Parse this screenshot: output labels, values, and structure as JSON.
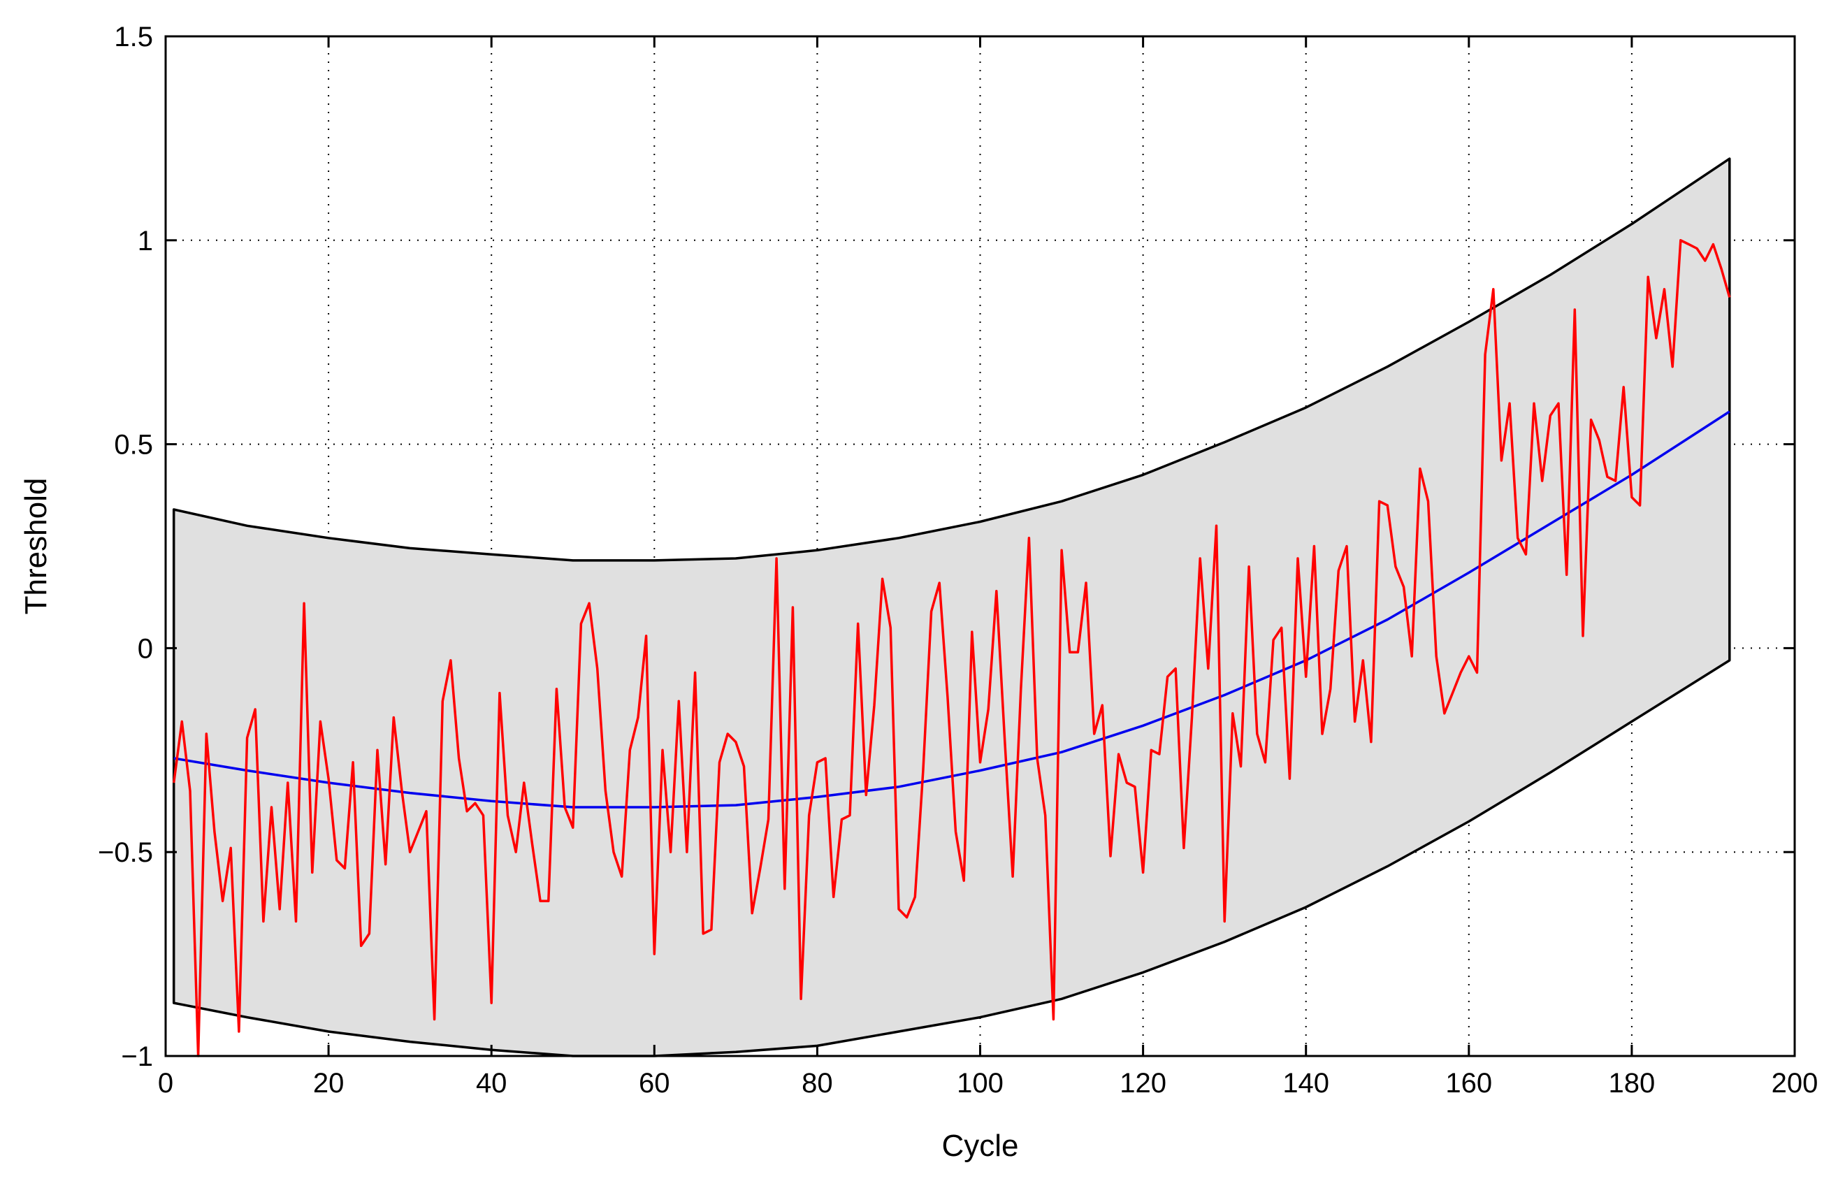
{
  "chart_data": {
    "type": "line",
    "xlabel": "Cycle",
    "ylabel": "Threshold",
    "xlim": [
      0,
      200
    ],
    "ylim": [
      -1,
      1.5
    ],
    "xticks": [
      0,
      20,
      40,
      60,
      80,
      100,
      120,
      140,
      160,
      180,
      200
    ],
    "yticks": [
      -1,
      -0.5,
      0,
      0.5,
      1,
      1.5
    ],
    "xtick_labels": [
      "0",
      "20",
      "40",
      "60",
      "80",
      "100",
      "120",
      "140",
      "160",
      "180",
      "200"
    ],
    "ytick_labels": [
      "−1",
      "−0.5",
      "0",
      "0.5",
      "1",
      "1.5"
    ],
    "grid": true,
    "grid_style": "dotted",
    "colors": {
      "band_fill": "#e0e0e0",
      "band_edge": "#000000",
      "fit": "#0000ee",
      "observed": "#ff0000"
    },
    "band": {
      "x": [
        1,
        10,
        20,
        30,
        40,
        50,
        60,
        70,
        80,
        90,
        100,
        110,
        120,
        130,
        140,
        150,
        160,
        170,
        180,
        192
      ],
      "upper": [
        0.34,
        0.3,
        0.27,
        0.245,
        0.23,
        0.215,
        0.215,
        0.22,
        0.24,
        0.27,
        0.31,
        0.36,
        0.425,
        0.505,
        0.59,
        0.69,
        0.8,
        0.915,
        1.04,
        1.2
      ],
      "lower": [
        -0.87,
        -0.905,
        -0.94,
        -0.965,
        -0.985,
        -1.0,
        -1.0,
        -0.99,
        -0.975,
        -0.94,
        -0.905,
        -0.86,
        -0.795,
        -0.72,
        -0.635,
        -0.535,
        -0.425,
        -0.305,
        -0.18,
        -0.03
      ]
    },
    "fit": {
      "x": [
        1,
        10,
        20,
        30,
        40,
        50,
        60,
        70,
        80,
        90,
        100,
        110,
        120,
        130,
        140,
        150,
        160,
        170,
        180,
        192
      ],
      "y": [
        -0.27,
        -0.3,
        -0.33,
        -0.355,
        -0.375,
        -0.39,
        -0.39,
        -0.385,
        -0.365,
        -0.34,
        -0.3,
        -0.255,
        -0.19,
        -0.115,
        -0.03,
        0.07,
        0.185,
        0.305,
        0.425,
        0.58
      ]
    },
    "series": [
      {
        "x": [
          1,
          2,
          3,
          4,
          5,
          6,
          7,
          8,
          9,
          10,
          11,
          12,
          13,
          14,
          15,
          16,
          17,
          18,
          19,
          20,
          21,
          22,
          23,
          24,
          25,
          26,
          27,
          28,
          29,
          30,
          31,
          32,
          33,
          34,
          35,
          36,
          37,
          38,
          39,
          40,
          41,
          42,
          43,
          44,
          45,
          46,
          47,
          48,
          49,
          50,
          51,
          52,
          53,
          54,
          55,
          56,
          57,
          58,
          59,
          60,
          61,
          62,
          63,
          64,
          65,
          66,
          67,
          68,
          69,
          70,
          71,
          72,
          73,
          74,
          75,
          76,
          77,
          78,
          79,
          80,
          81,
          82,
          83,
          84,
          85,
          86,
          87,
          88,
          89,
          90,
          91,
          92,
          93,
          94,
          95,
          96,
          97,
          98,
          99,
          100,
          101,
          102,
          103,
          104,
          105,
          106,
          107,
          108,
          109,
          110,
          111,
          112,
          113,
          114,
          115,
          116,
          117,
          118,
          119,
          120,
          121,
          122,
          123,
          124,
          125,
          126,
          127,
          128,
          129,
          130,
          131,
          132,
          133,
          134,
          135,
          136,
          137,
          138,
          139,
          140,
          141,
          142,
          143,
          144,
          145,
          146,
          147,
          148,
          149,
          150,
          151,
          152,
          153,
          154,
          155,
          156,
          157,
          158,
          159,
          160,
          161,
          162,
          163,
          164,
          165,
          166,
          167,
          168,
          169,
          170,
          171,
          172,
          173,
          174,
          175,
          176,
          177,
          178,
          179,
          180,
          181,
          182,
          183,
          184,
          185,
          186,
          187,
          188,
          189,
          190,
          191,
          192
        ],
        "y": [
          -0.33,
          -0.18,
          -0.35,
          -1.0,
          -0.21,
          -0.45,
          -0.62,
          -0.49,
          -0.94,
          -0.22,
          -0.15,
          -0.67,
          -0.39,
          -0.64,
          -0.33,
          -0.67,
          0.11,
          -0.55,
          -0.18,
          -0.32,
          -0.52,
          -0.54,
          -0.28,
          -0.73,
          -0.7,
          -0.25,
          -0.53,
          -0.17,
          -0.35,
          -0.5,
          -0.45,
          -0.4,
          -0.91,
          -0.13,
          -0.03,
          -0.27,
          -0.4,
          -0.38,
          -0.41,
          -0.87,
          -0.11,
          -0.41,
          -0.5,
          -0.33,
          -0.48,
          -0.62,
          -0.62,
          -0.1,
          -0.39,
          -0.44,
          0.06,
          0.11,
          -0.05,
          -0.35,
          -0.5,
          -0.56,
          -0.25,
          -0.17,
          0.03,
          -0.75,
          -0.25,
          -0.5,
          -0.13,
          -0.5,
          -0.06,
          -0.7,
          -0.69,
          -0.28,
          -0.21,
          -0.23,
          -0.29,
          -0.65,
          -0.54,
          -0.42,
          0.22,
          -0.59,
          0.1,
          -0.86,
          -0.41,
          -0.28,
          -0.27,
          -0.61,
          -0.42,
          -0.41,
          0.06,
          -0.36,
          -0.14,
          0.17,
          0.05,
          -0.64,
          -0.66,
          -0.61,
          -0.3,
          0.09,
          0.16,
          -0.12,
          -0.45,
          -0.57,
          0.04,
          -0.28,
          -0.15,
          0.14,
          -0.22,
          -0.56,
          -0.1,
          0.27,
          -0.27,
          -0.41,
          -0.91,
          0.24,
          -0.01,
          -0.01,
          0.16,
          -0.21,
          -0.14,
          -0.51,
          -0.26,
          -0.33,
          -0.34,
          -0.55,
          -0.25,
          -0.26,
          -0.07,
          -0.05,
          -0.49,
          -0.17,
          0.22,
          -0.05,
          0.3,
          -0.67,
          -0.16,
          -0.29,
          0.2,
          -0.21,
          -0.28,
          0.02,
          0.05,
          -0.32,
          0.22,
          -0.07,
          0.25,
          -0.21,
          -0.1,
          0.19,
          0.25,
          -0.18,
          -0.03,
          -0.23,
          0.36,
          0.35,
          0.2,
          0.15,
          -0.02,
          0.44,
          0.36,
          -0.02,
          -0.16,
          -0.11,
          -0.06,
          -0.02,
          -0.06,
          0.72,
          0.88,
          0.46,
          0.6,
          0.27,
          0.23,
          0.6,
          0.41,
          0.57,
          0.6,
          0.18,
          0.83,
          0.03,
          0.56,
          0.51,
          0.42,
          0.41,
          0.64,
          0.37,
          0.35,
          0.91,
          0.76,
          0.88,
          0.69,
          1.0,
          0.99,
          0.98,
          0.95,
          0.99,
          0.93,
          0.86
        ]
      }
    ]
  }
}
